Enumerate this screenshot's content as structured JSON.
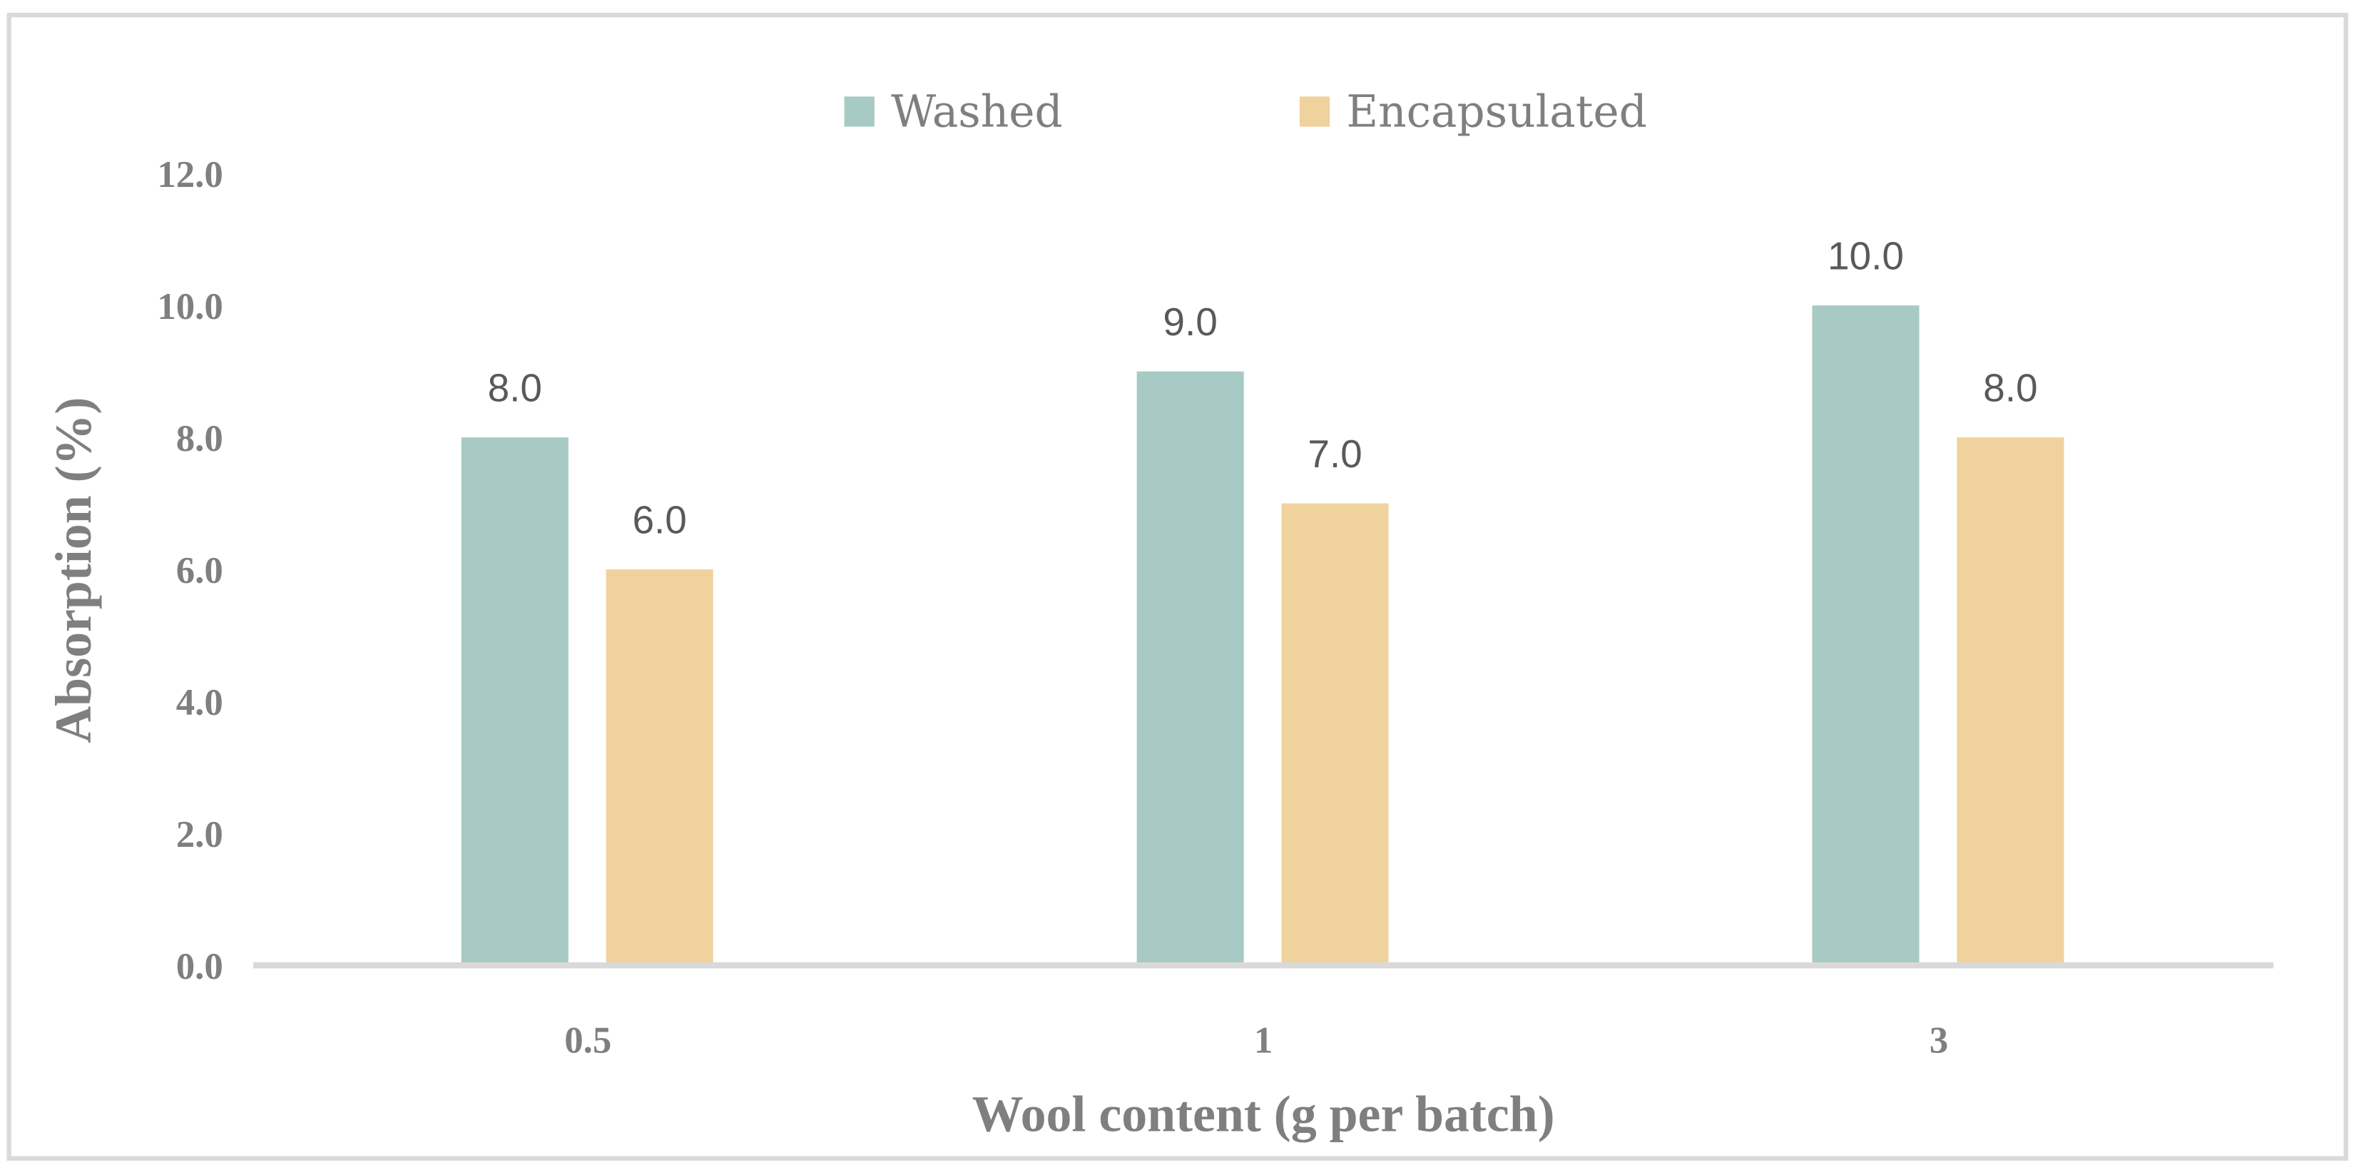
{
  "chart_data": {
    "type": "bar",
    "title": "",
    "xlabel": "Wool content (g per batch)",
    "ylabel": "Absorption (%)",
    "categories": [
      "0.5",
      "1",
      "3"
    ],
    "series": [
      {
        "name": "Washed",
        "values": [
          8.0,
          9.0,
          10.0
        ],
        "color": "#a7cbc4"
      },
      {
        "name": "Encapsulated",
        "values": [
          6.0,
          7.0,
          8.0
        ],
        "color": "#f0d29c"
      }
    ],
    "ylim": [
      0,
      12
    ],
    "yticks": [
      "0.0",
      "2.0",
      "4.0",
      "6.0",
      "8.0",
      "10.0",
      "12.0"
    ],
    "grid": false,
    "legend": "top-center",
    "data_labels": true
  }
}
